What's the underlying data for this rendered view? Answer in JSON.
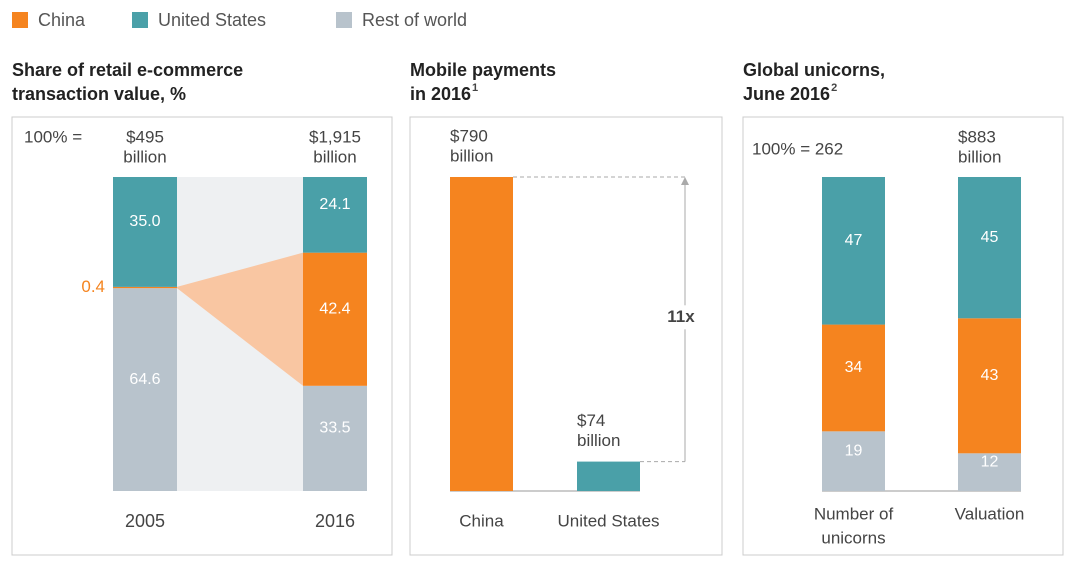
{
  "chart_data": [
    {
      "type": "stacked_bar",
      "title": [
        "Share of retail e-commerce",
        "transaction value, %"
      ],
      "total_prefix": "100% =",
      "total_labels": [
        [
          "$495",
          "billion"
        ],
        [
          "$1,915",
          "billion"
        ]
      ],
      "categories": [
        "2005",
        "2016"
      ],
      "ylim": [
        0,
        100
      ],
      "series": [
        {
          "name": "China",
          "color": "#f5841f",
          "values": [
            0.4,
            42.4
          ],
          "value_labels": [
            "0.4",
            "42.4"
          ]
        },
        {
          "name": "United States",
          "color": "#4aa0a8",
          "values": [
            35.0,
            24.1
          ],
          "value_labels": [
            "35.0",
            "24.1"
          ]
        },
        {
          "name": "Rest of world",
          "color": "#b8c3cc",
          "values": [
            64.6,
            33.5
          ],
          "value_labels": [
            "64.6",
            "33.5"
          ]
        }
      ]
    },
    {
      "type": "bar",
      "title": [
        "Mobile payments",
        "in 2016"
      ],
      "title_note": "1",
      "categories": [
        [
          "China"
        ],
        [
          "United States"
        ]
      ],
      "values": [
        790,
        74
      ],
      "value_labels": [
        [
          "$790",
          "billion"
        ],
        [
          "$74",
          "billion"
        ]
      ],
      "colors": [
        "#f5841f",
        "#4aa0a8"
      ],
      "ylim": [
        0,
        790
      ],
      "annotation": "11x"
    },
    {
      "type": "stacked_bar",
      "title": [
        "Global unicorns,",
        "June 2016"
      ],
      "title_note": "2",
      "total_labels": [
        [
          "100% = 262"
        ],
        [
          "$883",
          "billion"
        ]
      ],
      "categories": [
        [
          "Number of",
          "unicorns"
        ],
        [
          "Valuation"
        ]
      ],
      "ylim": [
        0,
        100
      ],
      "series": [
        {
          "name": "China",
          "color": "#f5841f",
          "values": [
            34,
            43
          ]
        },
        {
          "name": "United States",
          "color": "#4aa0a8",
          "values": [
            47,
            45
          ]
        },
        {
          "name": "Rest of world",
          "color": "#b8c3cc",
          "values": [
            19,
            12
          ]
        }
      ]
    }
  ]
}
